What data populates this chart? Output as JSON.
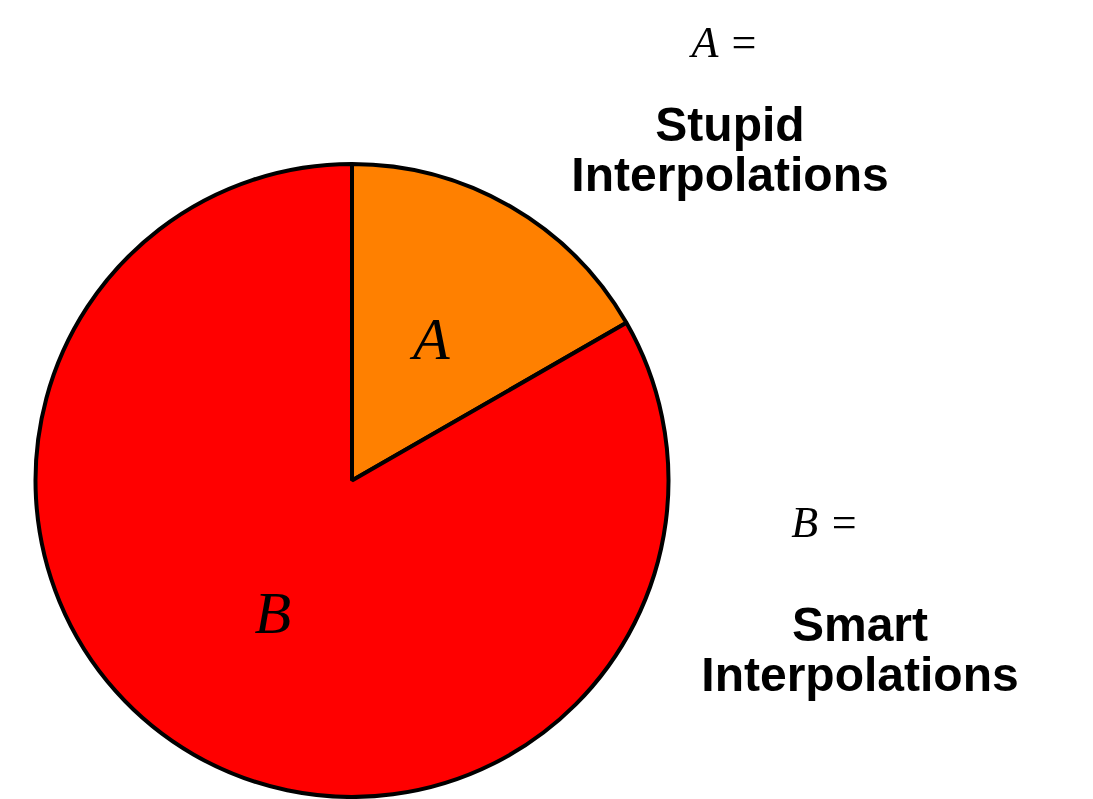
{
  "chart_data": {
    "type": "pie",
    "categories": [
      "A",
      "B"
    ],
    "values": [
      16.7,
      83.3
    ],
    "colors": [
      "#ff8000",
      "#ff0000"
    ],
    "legend": false,
    "annotations": [
      "A =",
      "Stupid Interpolations",
      "B =",
      "Smart Interpolations"
    ]
  }
}
